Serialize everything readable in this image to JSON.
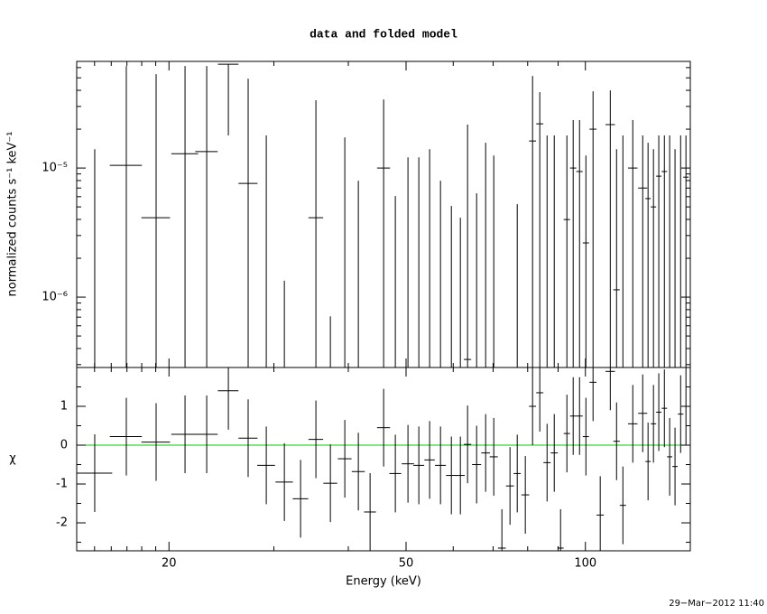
{
  "chart_data": [
    {
      "type": "errorbar",
      "title": "data and folded model",
      "ylabel": "normalized counts s⁻¹ keV⁻¹",
      "xscale": "log",
      "yscale": "log",
      "color": "#000000",
      "xlim": [
        14,
        150
      ],
      "xticks": [
        20,
        50,
        100
      ],
      "xminorticks": [
        15,
        16,
        17,
        18,
        19,
        30,
        40,
        60,
        70,
        80,
        90
      ],
      "ylim": [
        2.85e-07,
        6.7e-05
      ],
      "yticks": [
        {
          "value": 1e-06,
          "label": "10⁻⁶"
        },
        {
          "value": 1e-05,
          "label": "10⁻⁵"
        }
      ],
      "yminorticks": [
        3e-07,
        4e-07,
        5e-07,
        6e-07,
        7e-07,
        8e-07,
        9e-07,
        2e-06,
        3e-06,
        4e-06,
        5e-06,
        6e-06,
        7e-06,
        8e-06,
        9e-06,
        2e-05,
        3e-05,
        4e-05,
        5e-05,
        6e-05
      ],
      "x": [
        15.01,
        16.96,
        19.03,
        21.28,
        23.14,
        25.16,
        27.16,
        29.13,
        31.24,
        33.26,
        35.29,
        37.32,
        39.46,
        41.58,
        43.51,
        45.85,
        47.97,
        50.37,
        52.53,
        54.77,
        57.12,
        59.57,
        61.68,
        63.42,
        65.68,
        68.01,
        70.18,
        72.42,
        74.72,
        76.84,
        79.28,
        81.53,
        83.84,
        86.23,
        88.66,
        90.85,
        93.1,
        95.39,
        97.76,
        100.2,
        103.0,
        105.9,
        110.1,
        112.8,
        115.6,
        120.1,
        124.8,
        127.4,
        130.1,
        132.8,
        135.7,
        138.5,
        141.4,
        144.5,
        147.5
      ],
      "xerr": [
        1.05,
        1.05,
        1.05,
        1.1,
        1.0,
        1.0,
        1.0,
        1.0,
        1.05,
        1.0,
        1.0,
        1.0,
        1.05,
        1.05,
        1.0,
        1.15,
        1.1,
        1.2,
        1.1,
        1.1,
        1.2,
        1.2,
        1.05,
        0.9,
        1.15,
        1.15,
        1.1,
        1.1,
        1.15,
        1.05,
        1.2,
        1.1,
        1.15,
        1.2,
        1.2,
        1.1,
        1.15,
        1.15,
        1.2,
        1.2,
        1.4,
        1.5,
        2.0,
        1.4,
        1.4,
        2.2,
        2.2,
        1.3,
        1.35,
        1.35,
        1.4,
        1.4,
        1.45,
        1.55,
        1.5
      ],
      "values": [
        null,
        1.05e-05,
        4.12e-06,
        1.29e-05,
        1.34e-05,
        6.37e-05,
        7.6e-06,
        null,
        null,
        null,
        4.12e-06,
        null,
        null,
        null,
        null,
        1e-05,
        null,
        null,
        null,
        null,
        null,
        null,
        null,
        3.29e-07,
        null,
        null,
        null,
        null,
        null,
        null,
        null,
        1.62e-05,
        2.2e-05,
        null,
        null,
        null,
        3.99e-06,
        1e-05,
        9.4e-06,
        2.63e-06,
        2e-05,
        null,
        2.17e-05,
        1.14e-06,
        null,
        1e-05,
        7e-06,
        5.8e-06,
        5e-06,
        8.65e-06,
        9.4e-06,
        null,
        null,
        null,
        8.5e-06
      ],
      "upper": [
        1.4e-05,
        6.17e-05,
        5.34e-05,
        6.17e-05,
        6.17e-05,
        null,
        4.92e-05,
        1.79e-05,
        1.34e-06,
        null,
        3.35e-05,
        7.1e-07,
        1.73e-05,
        7.98e-06,
        null,
        3.4e-05,
        6.07e-06,
        1.21e-05,
        1.21e-05,
        1.4e-05,
        7.98e-06,
        5.08e-06,
        4.12e-06,
        2.17e-05,
        6.37e-06,
        1.57e-05,
        1.25e-05,
        null,
        null,
        5.25e-06,
        null,
        5.17e-05,
        3.87e-05,
        1.79e-05,
        1.79e-05,
        null,
        1.79e-05,
        2.35e-05,
        2.35e-05,
        1.25e-05,
        3.93e-05,
        null,
        3.99e-05,
        1.4e-05,
        1.79e-05,
        2.35e-05,
        1.79e-05,
        1.57e-05,
        1.4e-05,
        1.79e-05,
        1.79e-05,
        1.79e-05,
        1.4e-05,
        1.79e-05,
        1.79e-05
      ],
      "lower": [
        null,
        null,
        null,
        null,
        null,
        1.79e-05,
        null,
        null,
        null,
        null,
        null,
        null,
        null,
        null,
        null,
        null,
        null,
        null,
        null,
        null,
        null,
        null,
        null,
        null,
        null,
        null,
        null,
        null,
        null,
        null,
        null,
        null,
        null,
        null,
        null,
        null,
        null,
        null,
        null,
        null,
        null,
        null,
        null,
        null,
        null,
        null,
        null,
        null,
        null,
        null,
        null,
        null,
        null,
        null,
        null
      ]
    },
    {
      "type": "errorbar",
      "xlabel": "Energy (keV)",
      "ylabel": "χ",
      "xscale": "log",
      "yscale": "linear",
      "color": "#000000",
      "model_line": 0,
      "model_color": "#00cc00",
      "xlim": [
        14,
        150
      ],
      "xticks": [
        20,
        50,
        100
      ],
      "xminorticks": [
        15,
        16,
        17,
        18,
        19,
        30,
        40,
        60,
        70,
        80,
        90
      ],
      "ylim": [
        -2.72,
        2.0
      ],
      "yticks": [
        -2,
        -1,
        0,
        1
      ],
      "yminorticks": [
        -2.5,
        -1.5,
        -0.5,
        0.5,
        1.5
      ],
      "x": [
        15.01,
        16.96,
        19.03,
        21.28,
        23.14,
        25.16,
        27.16,
        29.13,
        31.24,
        33.26,
        35.29,
        37.32,
        39.46,
        41.58,
        43.51,
        45.85,
        47.97,
        50.37,
        52.53,
        54.77,
        57.12,
        59.57,
        61.68,
        63.42,
        65.68,
        68.01,
        70.18,
        72.42,
        74.72,
        76.84,
        79.28,
        81.53,
        83.84,
        86.23,
        88.66,
        90.85,
        93.1,
        95.39,
        97.76,
        100.2,
        103.0,
        105.9,
        110.1,
        112.8,
        115.6,
        120.1,
        124.8,
        127.4,
        130.1,
        132.8,
        135.7,
        138.5,
        141.4,
        144.5,
        147.5
      ],
      "xerr": [
        1.05,
        1.05,
        1.05,
        1.1,
        1.0,
        1.0,
        1.0,
        1.0,
        1.05,
        1.0,
        1.0,
        1.0,
        1.05,
        1.05,
        1.0,
        1.15,
        1.1,
        1.2,
        1.1,
        1.1,
        1.2,
        1.2,
        1.05,
        0.9,
        1.15,
        1.15,
        1.1,
        1.1,
        1.15,
        1.05,
        1.2,
        1.1,
        1.15,
        1.2,
        1.2,
        1.1,
        1.15,
        1.15,
        1.2,
        1.2,
        1.4,
        1.5,
        2.0,
        1.4,
        1.4,
        2.2,
        2.2,
        1.3,
        1.35,
        1.35,
        1.4,
        1.4,
        1.45,
        1.55,
        1.5
      ],
      "values": [
        -0.72,
        0.22,
        0.08,
        0.28,
        0.28,
        1.4,
        0.18,
        -0.52,
        -0.95,
        -1.38,
        0.15,
        -0.98,
        -0.35,
        -0.68,
        -1.72,
        0.45,
        -0.73,
        -0.48,
        -0.52,
        -0.38,
        -0.52,
        -0.78,
        -0.78,
        0.02,
        -0.5,
        -0.2,
        -0.3,
        -2.65,
        -1.05,
        -0.73,
        -1.28,
        1.0,
        1.35,
        -0.45,
        -0.2,
        -2.65,
        0.3,
        0.75,
        0.75,
        0.22,
        1.62,
        -1.8,
        1.9,
        0.1,
        -1.55,
        0.55,
        0.82,
        -0.42,
        0.55,
        0.85,
        0.95,
        -0.3,
        -0.55,
        0.8,
        1.0
      ],
      "errors": [
        1,
        1,
        1,
        1,
        1,
        1,
        1,
        1,
        1,
        1,
        1,
        1,
        1,
        1,
        1,
        1,
        1,
        1,
        1,
        1,
        1,
        1,
        1,
        1,
        1,
        1,
        1,
        1,
        1,
        1,
        1,
        1,
        1,
        1,
        1,
        1,
        1,
        1,
        1,
        1,
        1,
        1,
        1,
        1,
        1,
        1,
        1,
        1,
        1,
        1,
        1,
        1,
        1,
        1,
        1
      ]
    }
  ],
  "timestamp": "29−Mar−2012 11:40"
}
